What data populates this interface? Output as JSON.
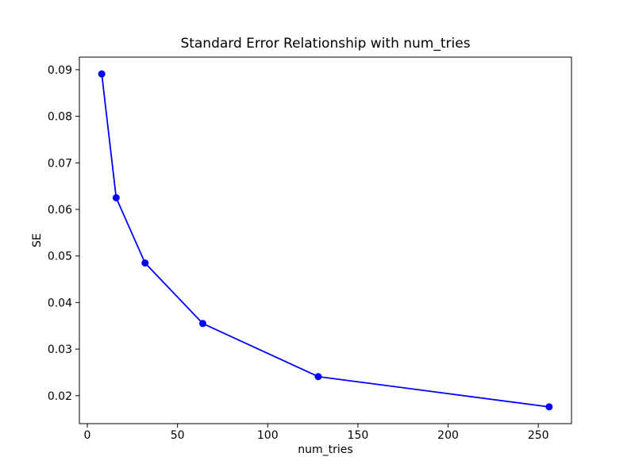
{
  "figure": {
    "background": "#ffffff",
    "text_color": "#000000",
    "spine_color": "#000000"
  },
  "chart_data": {
    "type": "line",
    "title": "Standard Error Relationship with num_tries",
    "xlabel": "num_tries",
    "ylabel": "SE",
    "x": [
      8,
      16,
      32,
      64,
      128,
      256
    ],
    "y": [
      0.0891,
      0.0625,
      0.0485,
      0.0355,
      0.0241,
      0.0176
    ],
    "x_ticks": [
      0,
      50,
      100,
      150,
      200,
      250
    ],
    "y_ticks": [
      0.02,
      0.03,
      0.04,
      0.05,
      0.06,
      0.07,
      0.08,
      0.09
    ],
    "xlim": [
      -4.4,
      268.4
    ],
    "ylim": [
      0.014,
      0.0927
    ],
    "line_color": "#0000ff",
    "marker": "circle",
    "marker_radius": 4.5,
    "line_width": 1.8,
    "grid": false,
    "legend_position": "none"
  }
}
